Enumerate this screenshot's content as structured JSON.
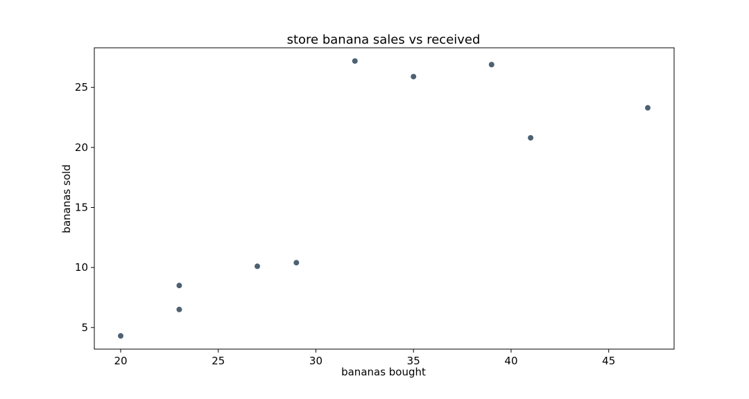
{
  "chart_data": {
    "type": "scatter",
    "title": "store banana sales vs received",
    "xlabel": "bananas bought",
    "ylabel": "bananas sold",
    "xlim": [
      18.65,
      48.35
    ],
    "ylim": [
      3.2,
      28.3
    ],
    "x_ticks": [
      20,
      25,
      30,
      35,
      40,
      45
    ],
    "y_ticks": [
      5,
      10,
      15,
      20,
      25
    ],
    "grid": false,
    "marker_color": "#4d6173",
    "points": [
      {
        "x": 20,
        "y": 4.3
      },
      {
        "x": 23,
        "y": 6.5
      },
      {
        "x": 23,
        "y": 8.5
      },
      {
        "x": 27,
        "y": 10.1
      },
      {
        "x": 29,
        "y": 10.4
      },
      {
        "x": 32,
        "y": 27.2
      },
      {
        "x": 35,
        "y": 25.9
      },
      {
        "x": 39,
        "y": 26.9
      },
      {
        "x": 41,
        "y": 20.8
      },
      {
        "x": 47,
        "y": 23.3
      }
    ]
  }
}
